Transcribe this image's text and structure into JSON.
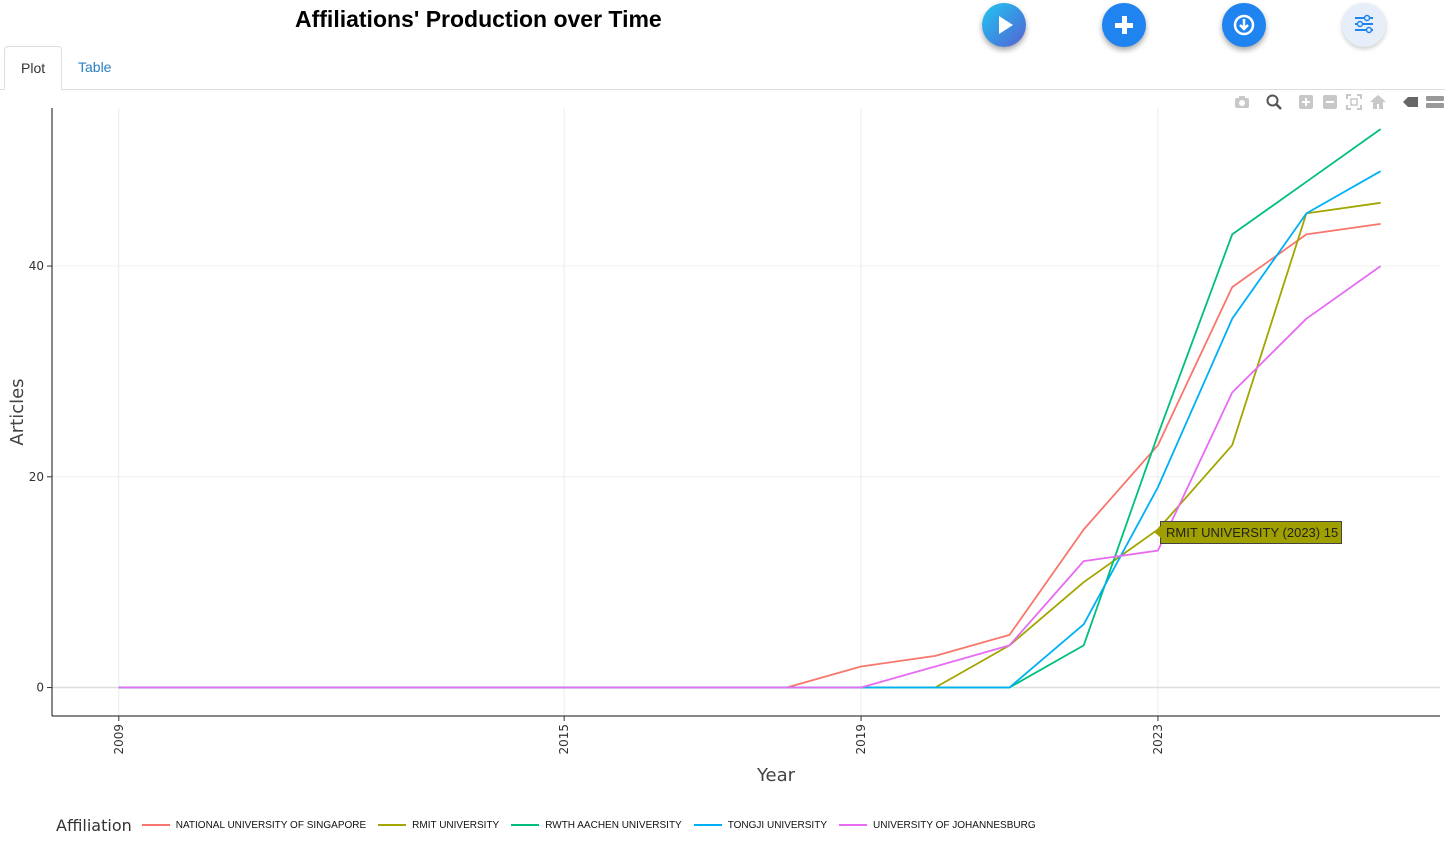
{
  "header": {
    "title": "Affiliations' Production over Time",
    "buttons": [
      {
        "name": "play",
        "icon": "play-icon"
      },
      {
        "name": "add",
        "icon": "plus-icon"
      },
      {
        "name": "download",
        "icon": "download-icon"
      },
      {
        "name": "options",
        "icon": "sliders-icon"
      }
    ]
  },
  "tabs": [
    {
      "label": "Plot",
      "active": true
    },
    {
      "label": "Table",
      "active": false
    }
  ],
  "modebar": [
    "camera-icon",
    "zoom-icon",
    "zoom-in-icon",
    "zoom-out-icon",
    "autoscale-icon",
    "home-icon",
    "spike-icon",
    "compare-icon"
  ],
  "tooltip": {
    "text": "RMIT UNIVERSITY (2023) 15",
    "color": "#a09f00"
  },
  "legend": {
    "title": "Affiliation"
  },
  "chart_data": {
    "type": "line",
    "title": "",
    "xlabel": "Year",
    "ylabel": "Articles",
    "x_ticks": [
      2009,
      2015,
      2019,
      2023
    ],
    "y_ticks": [
      0,
      20,
      40
    ],
    "xlim": [
      2008.1,
      2026.8
    ],
    "ylim": [
      -2.7,
      55
    ],
    "grid": true,
    "legend_position": "bottom",
    "series": [
      {
        "name": "NATIONAL UNIVERSITY OF SINGAPORE",
        "color": "#f8766d",
        "x": [
          2009,
          2010,
          2011,
          2012,
          2013,
          2014,
          2015,
          2016,
          2017,
          2018,
          2019,
          2020,
          2021,
          2022,
          2023,
          2024,
          2025,
          2026
        ],
        "values": [
          0,
          0,
          0,
          0,
          0,
          0,
          0,
          0,
          0,
          0,
          2,
          3,
          5,
          15,
          23,
          38,
          43,
          44
        ]
      },
      {
        "name": "RMIT UNIVERSITY",
        "color": "#a3a500",
        "x": [
          2009,
          2010,
          2011,
          2012,
          2013,
          2014,
          2015,
          2016,
          2017,
          2018,
          2019,
          2020,
          2021,
          2022,
          2023,
          2024,
          2025,
          2026
        ],
        "values": [
          0,
          0,
          0,
          0,
          0,
          0,
          0,
          0,
          0,
          0,
          0,
          0,
          4,
          10,
          15,
          23,
          45,
          46
        ]
      },
      {
        "name": "RWTH AACHEN UNIVERSITY",
        "color": "#00bf7d",
        "x": [
          2009,
          2010,
          2011,
          2012,
          2013,
          2014,
          2015,
          2016,
          2017,
          2018,
          2019,
          2020,
          2021,
          2022,
          2023,
          2024,
          2025,
          2026
        ],
        "values": [
          0,
          0,
          0,
          0,
          0,
          0,
          0,
          0,
          0,
          0,
          0,
          0,
          0,
          4,
          24,
          43,
          48,
          53
        ]
      },
      {
        "name": "TONGJI UNIVERSITY",
        "color": "#00b0f6",
        "x": [
          2009,
          2010,
          2011,
          2012,
          2013,
          2014,
          2015,
          2016,
          2017,
          2018,
          2019,
          2020,
          2021,
          2022,
          2023,
          2024,
          2025,
          2026
        ],
        "values": [
          0,
          0,
          0,
          0,
          0,
          0,
          0,
          0,
          0,
          0,
          0,
          0,
          0,
          6,
          19,
          35,
          45,
          49
        ]
      },
      {
        "name": "UNIVERSITY OF JOHANNESBURG",
        "color": "#e76bf3",
        "x": [
          2009,
          2010,
          2011,
          2012,
          2013,
          2014,
          2015,
          2016,
          2017,
          2018,
          2019,
          2020,
          2021,
          2022,
          2023,
          2024,
          2025,
          2026
        ],
        "values": [
          0,
          0,
          0,
          0,
          0,
          0,
          0,
          0,
          0,
          0,
          0,
          2,
          4,
          12,
          13,
          28,
          35,
          40
        ]
      }
    ]
  }
}
